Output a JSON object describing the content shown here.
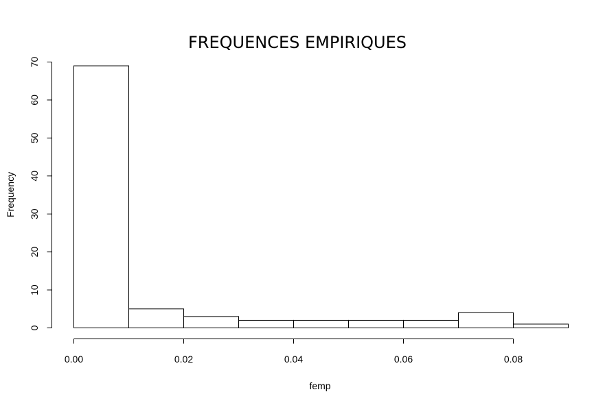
{
  "chart_data": {
    "type": "bar",
    "title": "FREQUENCES EMPIRIQUES",
    "xlabel": "femp",
    "ylabel": "Frequency",
    "bins": [
      {
        "start": 0.0,
        "end": 0.01,
        "count": 69
      },
      {
        "start": 0.01,
        "end": 0.02,
        "count": 5
      },
      {
        "start": 0.02,
        "end": 0.03,
        "count": 3
      },
      {
        "start": 0.03,
        "end": 0.04,
        "count": 2
      },
      {
        "start": 0.04,
        "end": 0.05,
        "count": 2
      },
      {
        "start": 0.05,
        "end": 0.06,
        "count": 2
      },
      {
        "start": 0.06,
        "end": 0.07,
        "count": 2
      },
      {
        "start": 0.07,
        "end": 0.08,
        "count": 4
      },
      {
        "start": 0.08,
        "end": 0.09,
        "count": 1
      }
    ],
    "xlim": [
      0.0,
      0.09
    ],
    "ylim": [
      0,
      70
    ],
    "x_ticks": [
      "0.00",
      "0.02",
      "0.04",
      "0.06",
      "0.08"
    ],
    "x_tick_values": [
      0.0,
      0.02,
      0.04,
      0.06,
      0.08
    ],
    "y_ticks": [
      "0",
      "10",
      "20",
      "30",
      "40",
      "50",
      "60",
      "70"
    ],
    "y_tick_values": [
      0,
      10,
      20,
      30,
      40,
      50,
      60,
      70
    ],
    "grid": false,
    "legend": "none"
  }
}
